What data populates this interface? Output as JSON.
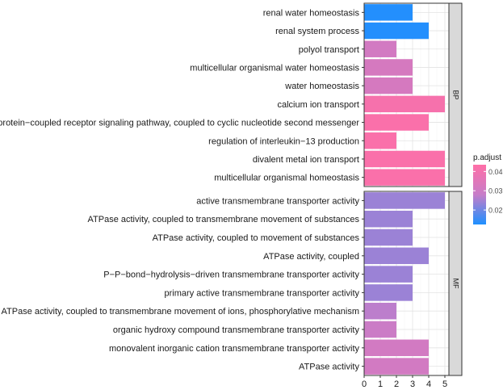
{
  "chart_data": {
    "type": "bar",
    "orientation": "horizontal",
    "x_axis": {
      "range": [
        0,
        5.25
      ],
      "ticks": [
        0,
        1,
        2,
        3,
        4,
        5
      ],
      "label": ""
    },
    "grid": true,
    "legend": {
      "title": "p.adjust",
      "position": "right",
      "ticks": [
        0.02,
        0.03,
        0.04
      ],
      "range": [
        0.0125,
        0.0435
      ],
      "colors": [
        "#1e90ff",
        "#c77dc8",
        "#ff6fa7"
      ]
    },
    "panels": [
      {
        "name": "BP",
        "categories": [
          "renal water homeostasis",
          "renal system process",
          "polyol transport",
          "multicellular organismal water homeostasis",
          "water homeostasis",
          "calcium ion transport",
          "G protein−coupled receptor signaling pathway, coupled to cyclic nucleotide second messenger",
          "regulation of interleukin−13 production",
          "divalent metal ion transport",
          "multicellular organismal homeostasis"
        ],
        "values": [
          3,
          4,
          2,
          3,
          3,
          5,
          4,
          2,
          5,
          5
        ],
        "p_adjust": [
          0.013,
          0.013,
          0.031,
          0.032,
          0.032,
          0.041,
          0.042,
          0.042,
          0.042,
          0.042
        ]
      },
      {
        "name": "MF",
        "categories": [
          "active transmembrane transporter activity",
          "ATPase activity, coupled to transmembrane movement of substances",
          "ATPase activity, coupled to movement of substances",
          "ATPase activity, coupled",
          "P−P−bond−hydrolysis−driven transmembrane transporter activity",
          "primary active transmembrane transporter activity",
          "ATPase activity, coupled to transmembrane movement of ions, phosphorylative mechanism",
          "organic hydroxy compound transmembrane transporter activity",
          "monovalent inorganic cation transmembrane transporter activity",
          "ATPase activity"
        ],
        "values": [
          5,
          3,
          3,
          4,
          3,
          3,
          2,
          2,
          4,
          4
        ],
        "p_adjust": [
          0.024,
          0.024,
          0.024,
          0.024,
          0.024,
          0.024,
          0.027,
          0.029,
          0.031,
          0.031
        ]
      }
    ]
  }
}
